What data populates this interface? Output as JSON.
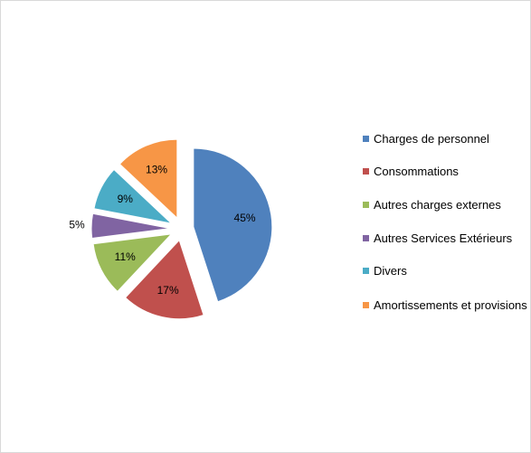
{
  "chart_data": {
    "type": "pie",
    "categories": [
      "Charges de personnel",
      "Consommations",
      "Autres charges externes",
      "Autres Services Extérieurs",
      "Divers",
      "Amortissements et provisions"
    ],
    "values": [
      45,
      17,
      11,
      5,
      9,
      13
    ],
    "value_labels": [
      "45%",
      "17%",
      "11%",
      "5%",
      "9%",
      "13%"
    ],
    "colors": [
      "#4f81bd",
      "#c0504d",
      "#9bbb59",
      "#8064a2",
      "#4bacc6",
      "#f79646"
    ],
    "exploded": true,
    "legend": "right"
  }
}
